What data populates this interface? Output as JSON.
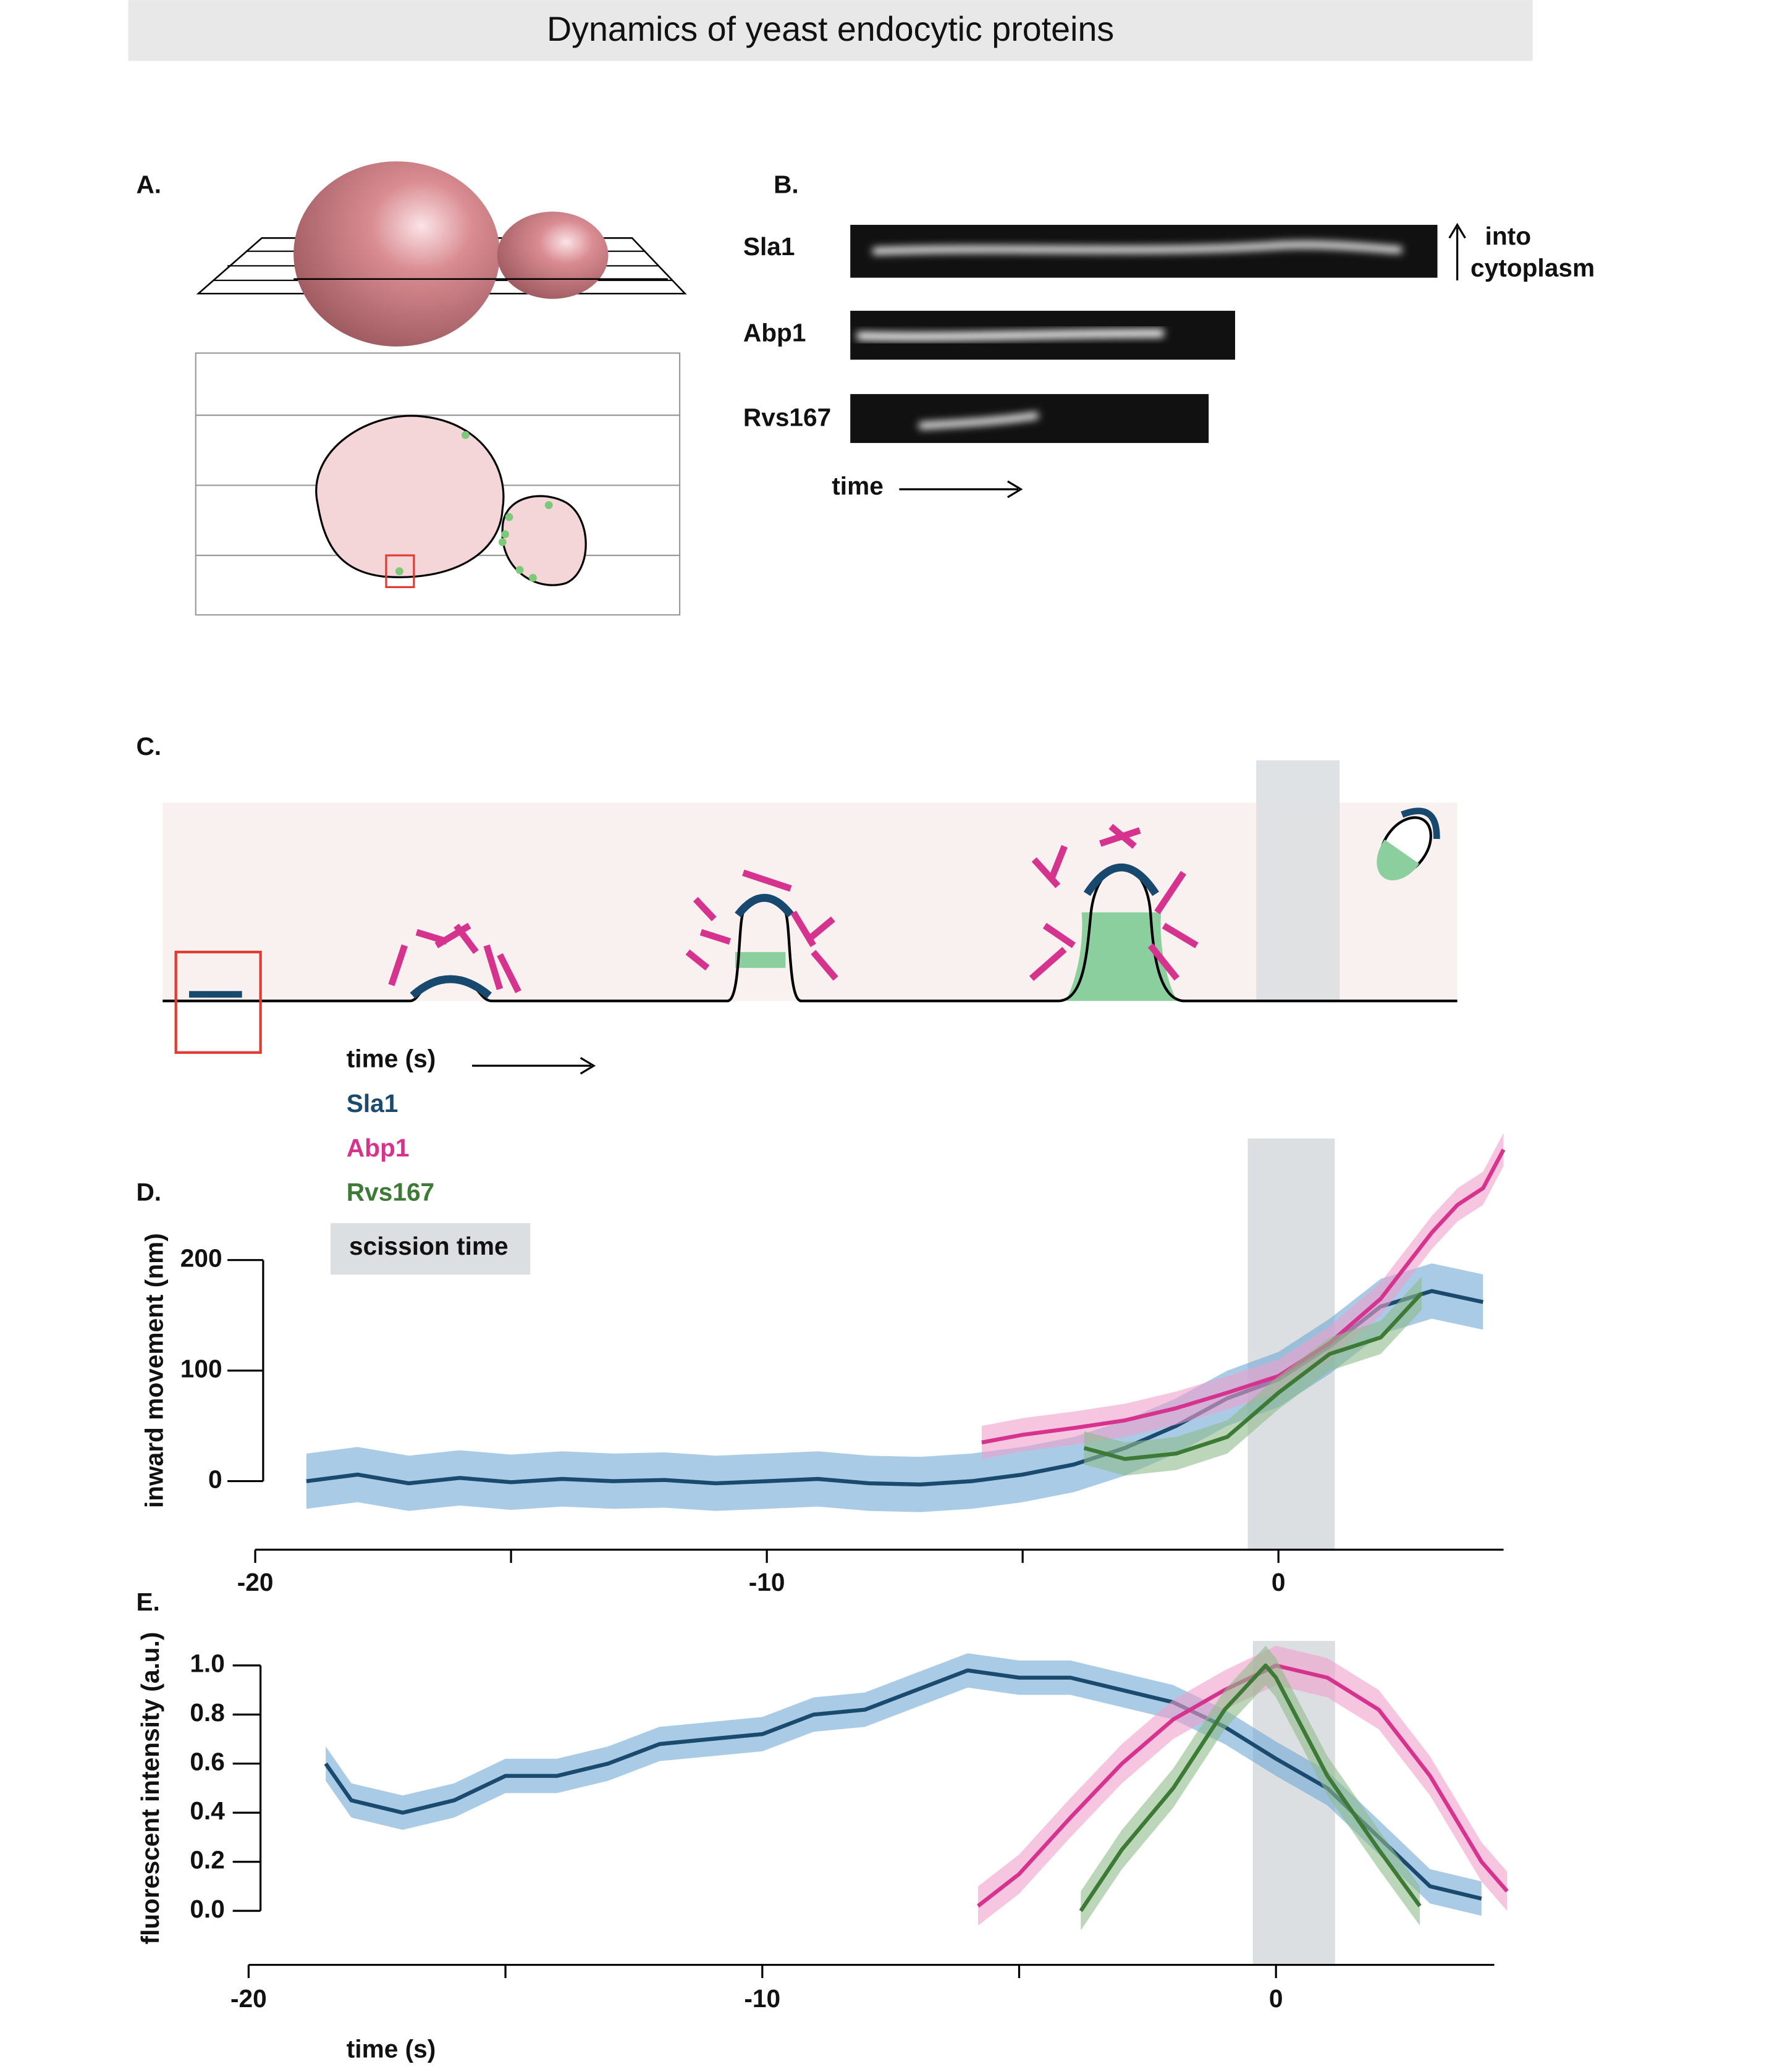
{
  "figure": {
    "title": "Dynamics of yeast endocytic proteins",
    "panel_labels": [
      "A.",
      "B.",
      "C.",
      "D.",
      "E."
    ],
    "kymograph": {
      "proteins": [
        "Sla1",
        "Abp1",
        "Rvs167"
      ],
      "time_label": "time",
      "direction_label": [
        "into",
        "cytoplasm"
      ]
    },
    "schematic": {
      "time_label": "time (s)"
    }
  },
  "chart_data": [
    {
      "type": "line",
      "ylabel": "inward movement (nm)",
      "xlim": [
        -20,
        4.4
      ],
      "ylim": [
        -62,
        310
      ],
      "xticks": [
        -20,
        -10,
        0
      ],
      "xminorticks": [
        -15,
        -5
      ],
      "yticks": [
        0,
        100,
        200
      ],
      "span": [
        -0.6,
        1.1
      ],
      "span_label": "scission time",
      "span_color": "#dcdfe1",
      "series": [
        {
          "name": "Sla1",
          "color": "#1a4a6e",
          "band_color": "#6fa9d6",
          "band": 25,
          "x": [
            -19,
            -18,
            -17,
            -16,
            -15,
            -14,
            -13,
            -12,
            -11,
            -10,
            -9,
            -8,
            -7,
            -6,
            -5,
            -4,
            -3,
            -2,
            -1,
            0,
            1,
            2,
            3,
            4
          ],
          "values": [
            0,
            6,
            -2,
            3,
            -1,
            2,
            0,
            1,
            -2,
            0,
            2,
            -2,
            -3,
            0,
            6,
            15,
            30,
            50,
            75,
            92,
            122,
            158,
            172,
            162
          ]
        },
        {
          "name": "Abp1",
          "color": "#d6338f",
          "band_color": "#f0a0cc",
          "band": 15,
          "x": [
            -5.8,
            -5,
            -4,
            -3,
            -2,
            -1,
            0,
            1,
            2,
            3,
            3.5,
            4,
            4.4
          ],
          "values": [
            35,
            42,
            48,
            55,
            66,
            80,
            95,
            125,
            165,
            225,
            250,
            265,
            300
          ]
        },
        {
          "name": "Rvs167",
          "color": "#3d7a35",
          "band_color": "#8fbb8a",
          "band": 15,
          "x": [
            -3.8,
            -3,
            -2,
            -1,
            0,
            1,
            2,
            2.8
          ],
          "values": [
            30,
            20,
            25,
            40,
            80,
            115,
            130,
            170
          ]
        }
      ]
    },
    {
      "type": "line",
      "ylabel": "fluorescent intensity (a.u.)",
      "xlabel": "time (s)",
      "xlim": [
        -20,
        4.25
      ],
      "ylim": [
        -0.22,
        1.1
      ],
      "xticks": [
        -20,
        -10,
        0
      ],
      "xminorticks": [
        -15,
        -5
      ],
      "yticks": [
        {
          "value": 0,
          "label": "0.0"
        },
        {
          "value": 0.2,
          "label": "0.2"
        },
        {
          "value": 0.4,
          "label": "0.4"
        },
        {
          "value": 0.6,
          "label": "0.6"
        },
        {
          "value": 0.8,
          "label": "0.8"
        },
        {
          "value": 1,
          "label": "1.0"
        }
      ],
      "span": [
        -0.45,
        1.15
      ],
      "span_color": "#dcdfe1",
      "series": [
        {
          "color": "#1a4a6e",
          "band_color": "#6fa9d6",
          "band": 0.07,
          "x": [
            -18.5,
            -18,
            -17,
            -16,
            -15,
            -14,
            -13,
            -12,
            -11,
            -10,
            -9,
            -8,
            -7,
            -6,
            -5,
            -4,
            -3,
            -2,
            -1,
            0,
            1,
            2,
            3,
            4
          ],
          "values": [
            0.6,
            0.45,
            0.4,
            0.45,
            0.55,
            0.55,
            0.6,
            0.68,
            0.7,
            0.72,
            0.8,
            0.82,
            0.9,
            0.98,
            0.95,
            0.95,
            0.9,
            0.85,
            0.75,
            0.62,
            0.5,
            0.3,
            0.1,
            0.05
          ]
        },
        {
          "color": "#d6338f",
          "band_color": "#f0a0cc",
          "band": 0.08,
          "x": [
            -5.8,
            -5,
            -4,
            -3,
            -2,
            -1,
            0,
            1,
            2,
            3,
            4,
            4.5
          ],
          "values": [
            0.02,
            0.15,
            0.38,
            0.6,
            0.78,
            0.9,
            1,
            0.95,
            0.82,
            0.55,
            0.2,
            0.08
          ]
        },
        {
          "color": "#3d7a35",
          "band_color": "#8fbb8a",
          "band": 0.08,
          "x": [
            -3.8,
            -3,
            -2,
            -1,
            -0.2,
            0,
            1,
            2,
            2.8
          ],
          "values": [
            0,
            0.25,
            0.5,
            0.82,
            1,
            0.95,
            0.55,
            0.25,
            0.02
          ]
        }
      ]
    }
  ]
}
